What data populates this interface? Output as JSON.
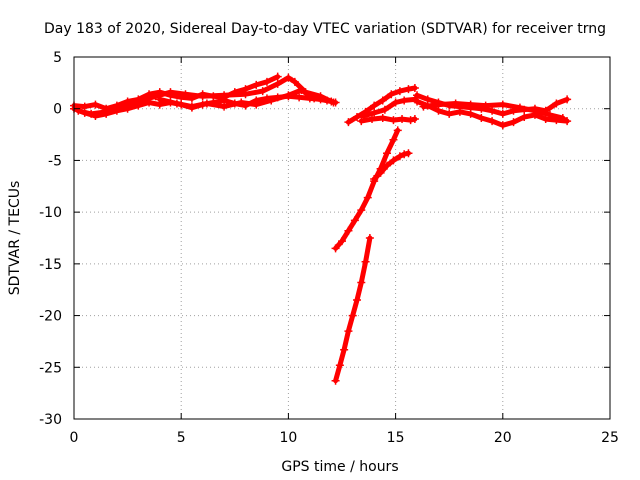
{
  "chart_data": {
    "type": "scatter",
    "title": "Day 183 of 2020, Sidereal Day-to-day VTEC variation (SDTVAR) for receiver trng",
    "xlabel": "GPS time / hours",
    "ylabel": "SDTVAR / TECUs",
    "xlim": [
      0,
      25
    ],
    "ylim": [
      -30,
      5
    ],
    "xticks": [
      0,
      5,
      10,
      15,
      20,
      25
    ],
    "yticks": [
      -30,
      -25,
      -20,
      -15,
      -10,
      -5,
      0,
      5
    ],
    "grid": true,
    "legend": "none",
    "marker": "+",
    "series_color": "#ff0000",
    "grid_color": "#a0a0a0",
    "segments": [
      {
        "points": [
          [
            0.0,
            0.3
          ],
          [
            0.5,
            0.2
          ],
          [
            1.0,
            0.4
          ],
          [
            1.5,
            0.0
          ],
          [
            2.0,
            0.3
          ],
          [
            2.5,
            0.7
          ],
          [
            3.0,
            0.9
          ],
          [
            3.5,
            1.4
          ],
          [
            4.0,
            1.6
          ],
          [
            4.5,
            1.3
          ],
          [
            5.0,
            1.1
          ],
          [
            5.5,
            1.0
          ],
          [
            6.0,
            1.4
          ],
          [
            6.5,
            1.2
          ],
          [
            7.0,
            1.1
          ],
          [
            7.5,
            1.6
          ],
          [
            8.0,
            1.9
          ],
          [
            8.5,
            2.3
          ],
          [
            9.0,
            2.6
          ],
          [
            9.5,
            3.1
          ]
        ]
      },
      {
        "points": [
          [
            0.0,
            0.0
          ],
          [
            0.5,
            -0.4
          ],
          [
            1.0,
            -0.7
          ],
          [
            1.5,
            -0.5
          ],
          [
            2.0,
            -0.2
          ],
          [
            2.5,
            0.0
          ],
          [
            3.0,
            0.3
          ],
          [
            3.5,
            0.6
          ],
          [
            4.0,
            0.4
          ],
          [
            4.5,
            0.6
          ],
          [
            5.0,
            0.4
          ],
          [
            5.5,
            0.1
          ],
          [
            6.0,
            0.4
          ],
          [
            6.5,
            0.6
          ],
          [
            7.0,
            0.8
          ],
          [
            7.5,
            0.5
          ],
          [
            8.0,
            0.3
          ],
          [
            8.5,
            0.8
          ],
          [
            9.0,
            1.0
          ],
          [
            9.5,
            1.1
          ],
          [
            10.0,
            1.2
          ],
          [
            10.5,
            1.1
          ],
          [
            11.0,
            1.0
          ],
          [
            11.5,
            0.9
          ],
          [
            12.0,
            0.7
          ],
          [
            12.2,
            0.6
          ]
        ]
      },
      {
        "points": [
          [
            0.2,
            -0.2
          ],
          [
            0.8,
            -0.5
          ],
          [
            1.5,
            -0.3
          ],
          [
            2.2,
            0.2
          ],
          [
            3.0,
            0.7
          ],
          [
            3.8,
            1.2
          ],
          [
            4.5,
            1.6
          ],
          [
            5.2,
            1.4
          ],
          [
            6.0,
            1.2
          ],
          [
            7.0,
            1.3
          ],
          [
            8.0,
            1.4
          ],
          [
            8.8,
            1.7
          ],
          [
            9.5,
            2.4
          ],
          [
            10.0,
            3.0
          ],
          [
            10.3,
            2.6
          ],
          [
            10.8,
            1.6
          ],
          [
            11.5,
            1.2
          ],
          [
            12.1,
            0.6
          ]
        ]
      },
      {
        "points": [
          [
            4.0,
            0.9
          ],
          [
            4.8,
            0.5
          ],
          [
            5.5,
            0.2
          ],
          [
            6.2,
            0.5
          ],
          [
            7.0,
            0.2
          ],
          [
            7.8,
            0.6
          ],
          [
            8.5,
            0.4
          ],
          [
            9.2,
            0.8
          ],
          [
            10.0,
            1.3
          ],
          [
            10.6,
            1.8
          ],
          [
            11.2,
            1.0
          ],
          [
            11.8,
            0.8
          ]
        ]
      },
      {
        "points": [
          [
            12.8,
            -1.3
          ],
          [
            13.2,
            -0.8
          ],
          [
            13.6,
            -0.3
          ],
          [
            14.0,
            0.3
          ],
          [
            14.4,
            0.8
          ],
          [
            14.8,
            1.4
          ],
          [
            15.2,
            1.7
          ],
          [
            15.6,
            1.9
          ],
          [
            15.9,
            2.0
          ]
        ]
      },
      {
        "points": [
          [
            13.4,
            -1.2
          ],
          [
            13.9,
            -1.0
          ],
          [
            14.4,
            -0.9
          ],
          [
            14.9,
            -1.1
          ],
          [
            15.3,
            -1.0
          ],
          [
            15.7,
            -1.1
          ],
          [
            15.9,
            -1.0
          ]
        ]
      },
      {
        "points": [
          [
            13.5,
            -0.7
          ],
          [
            14.0,
            -0.4
          ],
          [
            14.5,
            -0.1
          ],
          [
            15.0,
            0.6
          ],
          [
            15.4,
            0.8
          ],
          [
            15.9,
            0.9
          ]
        ]
      },
      {
        "points": [
          [
            16.0,
            1.3
          ],
          [
            16.5,
            0.9
          ],
          [
            17.0,
            0.6
          ],
          [
            17.5,
            0.3
          ],
          [
            18.0,
            0.2
          ],
          [
            18.5,
            0.1
          ],
          [
            19.0,
            0.0
          ],
          [
            19.5,
            -0.2
          ],
          [
            20.0,
            -0.5
          ],
          [
            20.5,
            -0.2
          ],
          [
            21.0,
            -0.1
          ],
          [
            21.5,
            0.0
          ],
          [
            22.0,
            -0.2
          ],
          [
            22.5,
            0.5
          ],
          [
            23.0,
            0.9
          ]
        ]
      },
      {
        "points": [
          [
            16.0,
            0.7
          ],
          [
            16.5,
            0.3
          ],
          [
            17.0,
            -0.2
          ],
          [
            17.5,
            -0.5
          ],
          [
            18.0,
            -0.3
          ],
          [
            18.5,
            -0.5
          ],
          [
            19.0,
            -0.9
          ],
          [
            19.5,
            -1.2
          ],
          [
            20.0,
            -1.6
          ],
          [
            20.5,
            -1.3
          ],
          [
            21.0,
            -0.8
          ],
          [
            21.5,
            -0.6
          ],
          [
            22.0,
            -1.0
          ],
          [
            22.5,
            -1.1
          ],
          [
            23.0,
            -1.2
          ]
        ]
      },
      {
        "points": [
          [
            16.3,
            0.2
          ],
          [
            17.0,
            0.4
          ],
          [
            17.8,
            0.5
          ],
          [
            18.5,
            0.4
          ],
          [
            19.2,
            0.3
          ],
          [
            20.0,
            0.4
          ],
          [
            20.8,
            0.1
          ],
          [
            21.5,
            -0.2
          ],
          [
            22.2,
            -0.6
          ],
          [
            22.8,
            -0.9
          ]
        ]
      },
      {
        "points": [
          [
            12.2,
            -13.5
          ],
          [
            12.5,
            -12.8
          ],
          [
            12.8,
            -11.8
          ],
          [
            13.1,
            -10.8
          ],
          [
            13.4,
            -9.8
          ],
          [
            13.7,
            -8.6
          ],
          [
            14.0,
            -7.0
          ],
          [
            14.3,
            -5.8
          ],
          [
            14.6,
            -4.3
          ],
          [
            14.9,
            -3.0
          ],
          [
            15.1,
            -2.1
          ]
        ]
      },
      {
        "points": [
          [
            14.0,
            -6.8
          ],
          [
            14.3,
            -6.2
          ],
          [
            14.6,
            -5.5
          ],
          [
            14.9,
            -5.0
          ],
          [
            15.2,
            -4.6
          ],
          [
            15.4,
            -4.4
          ],
          [
            15.6,
            -4.3
          ]
        ]
      },
      {
        "points": [
          [
            12.2,
            -26.3
          ],
          [
            12.4,
            -24.8
          ],
          [
            12.6,
            -23.3
          ],
          [
            12.8,
            -21.5
          ],
          [
            13.0,
            -20.0
          ],
          [
            13.2,
            -18.5
          ],
          [
            13.4,
            -16.8
          ],
          [
            13.6,
            -14.8
          ],
          [
            13.8,
            -12.5
          ]
        ]
      }
    ]
  }
}
